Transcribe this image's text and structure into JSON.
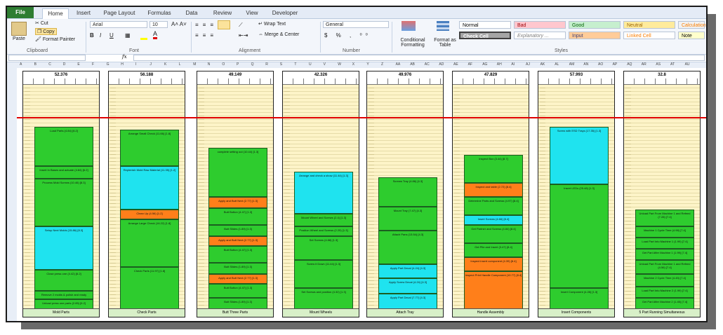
{
  "tabs": [
    "File",
    "Home",
    "Insert",
    "Page Layout",
    "Formulas",
    "Data",
    "Review",
    "View",
    "Developer"
  ],
  "clipboard": {
    "paste": "Paste",
    "cut": "Cut",
    "copy": "Copy",
    "format_painter": "Format Painter",
    "label": "Clipboard"
  },
  "font": {
    "name": "Arial",
    "size": "10",
    "label": "Font"
  },
  "alignment": {
    "wrap": "Wrap Text",
    "merge": "Merge & Center",
    "label": "Alignment"
  },
  "number": {
    "format": "General",
    "label": "Number"
  },
  "styles_group": {
    "cond": "Conditional Formatting",
    "table": "Format as Table",
    "label": "Styles"
  },
  "styles": [
    {
      "name": "Normal",
      "bg": "#ffffff",
      "fg": "#000000"
    },
    {
      "name": "Bad",
      "bg": "#ffc7ce",
      "fg": "#9c0006"
    },
    {
      "name": "Good",
      "bg": "#c6efce",
      "fg": "#006100"
    },
    {
      "name": "Neutral",
      "bg": "#ffeb9c",
      "fg": "#9c6500"
    },
    {
      "name": "Calculation",
      "bg": "#f2f2f2",
      "fg": "#fa7d00"
    },
    {
      "name": "Check Cell",
      "bg": "#a5a5a5",
      "fg": "#ffffff"
    },
    {
      "name": "Explanatory ...",
      "bg": "#ffffff",
      "fg": "#7f7f7f"
    },
    {
      "name": "Input",
      "bg": "#ffcc99",
      "fg": "#3f3f76"
    },
    {
      "name": "Linked Cell",
      "bg": "#ffffff",
      "fg": "#fa7d00"
    },
    {
      "name": "Note",
      "bg": "#ffffcc",
      "fg": "#000000"
    }
  ],
  "fx": "fx",
  "panels": [
    {
      "total": "52.376",
      "footer": "Mold Parts",
      "blocks": [
        {
          "t": "Load Parts (4.84) [6.2]",
          "c": "g",
          "h": 56
        },
        {
          "t": "Insert In Bases and actuate (4.84) [6.2]",
          "c": "g",
          "h": 18
        },
        {
          "t": "Process Mold Screws (10.46) [8.3]",
          "c": "g",
          "h": 68
        },
        {
          "t": "Setup Next Molds (15.86) [8.3]",
          "c": "c",
          "h": 62
        },
        {
          "t": "Close press one (4.42) [6.2]",
          "c": "g",
          "h": 30
        },
        {
          "t": "Remove 2 molds & polish and ready",
          "c": "g",
          "h": 12
        },
        {
          "t": "Unload press one parts (2.85) [6.2]",
          "c": "g",
          "h": 14
        }
      ]
    },
    {
      "total": "56.188",
      "footer": "Check Parts",
      "blocks": [
        {
          "t": "Arrange Small Check (11.66) [1.8]",
          "c": "g",
          "h": 52
        },
        {
          "t": "Replenish Mold Raw Material (11.35) [1.2]",
          "c": "c",
          "h": 62
        },
        {
          "t": "Clean Up (4.56) [1.2]",
          "c": "o",
          "h": 14
        },
        {
          "t": "Arrange Large Check (16.22) [1.8]",
          "c": "g",
          "h": 68
        },
        {
          "t": "Check Parts (11.97) [1.8]",
          "c": "g",
          "h": 60
        }
      ]
    },
    {
      "total": "49.149",
      "footer": "Butt Three Parts",
      "blocks": [
        {
          "t": "complete setting out (10.44) [1.3]",
          "c": "g",
          "h": 70
        },
        {
          "t": "Apply and Butt Next (2.77) [1.3]",
          "c": "o",
          "h": 16
        },
        {
          "t": "Butt Button (4.47) [1.3]",
          "c": "g",
          "h": 24
        },
        {
          "t": "Butt Slides (1.89) [1.3]",
          "c": "g",
          "h": 16
        },
        {
          "t": "Apply and Butt Next (2.77) [1.3]",
          "c": "o",
          "h": 14
        },
        {
          "t": "Butt Button (4.47) [1.3]",
          "c": "g",
          "h": 24
        },
        {
          "t": "Butt Slides (1.89) [1.3]",
          "c": "g",
          "h": 16
        },
        {
          "t": "Apply and Butt Next (2.77) [1.3]",
          "c": "o",
          "h": 14
        },
        {
          "t": "Butt Button (4.47) [1.3]",
          "c": "g",
          "h": 20
        },
        {
          "t": "Butt Slides (1.89) [1.3]",
          "c": "g",
          "h": 16
        }
      ]
    },
    {
      "total": "42.326",
      "footer": "Mount Wheels",
      "blocks": [
        {
          "t": "Arrange and check a show (11.44) [1.3]",
          "c": "c",
          "h": 60
        },
        {
          "t": "Mount Wheel and Screws (2.4) [1.3]",
          "c": "g",
          "h": 18
        },
        {
          "t": "Position Wheel and Screws (2.25) [1.3]",
          "c": "g",
          "h": 14
        },
        {
          "t": "Set Screws (4.88) [1.3]",
          "c": "g",
          "h": 34
        },
        {
          "t": "Screw it Down (11.44) [1.3]",
          "c": "g",
          "h": 40
        },
        {
          "t": "Set Screws and position (4.32) [1.3]",
          "c": "g",
          "h": 30
        }
      ]
    },
    {
      "total": "49.976",
      "footer": "Attach Tray",
      "blocks": [
        {
          "t": "Screws Tray (4.86) [4.3]",
          "c": "g",
          "h": 42
        },
        {
          "t": "Mount Tray (7.47) [4.3]",
          "c": "g",
          "h": 34
        },
        {
          "t": "Attach Pans (13.54) [4.3]",
          "c": "g",
          "h": 48
        },
        {
          "t": "Apply Part Decal (4.24) [4.3]",
          "c": "c",
          "h": 20
        },
        {
          "t": "Apply Screw Decal (4.24) [4.3]",
          "c": "c",
          "h": 22
        },
        {
          "t": "Apply Part Decal (7.77) [4.3]",
          "c": "c",
          "h": 22
        }
      ]
    },
    {
      "total": "47.829",
      "footer": "Handle Assembly",
      "blocks": [
        {
          "t": "Inspect Box (3.44) [8.7]",
          "c": "g",
          "h": 40
        },
        {
          "t": "Inspect and table (2.72) [8.4]",
          "c": "o",
          "h": 20
        },
        {
          "t": "Determine Parts and Screws (4.97) [8.4]",
          "c": "g",
          "h": 26
        },
        {
          "t": "Insert Screws (4.66) [8.4]",
          "c": "c",
          "h": 14
        },
        {
          "t": "Get Partner and Screws (4.84) [8.4]",
          "c": "g",
          "h": 26
        },
        {
          "t": "Get Pile and Insert (3.47) [8.4]",
          "c": "g",
          "h": 20
        },
        {
          "t": "Inspect insert component (4.39) [8.4]",
          "c": "o",
          "h": 20
        },
        {
          "t": "Inspect Print Handle Component (10.77) [8.4]",
          "c": "o",
          "h": 54
        }
      ]
    },
    {
      "total": "57.993",
      "footer": "Insert Components",
      "blocks": [
        {
          "t": "Screw with ESD Trays (17.35) [1.3]",
          "c": "c",
          "h": 82
        },
        {
          "t": "Insert LEDs (25.48) [1.3]",
          "c": "g",
          "h": 148
        },
        {
          "t": "Insert Component (4.28) [1.3]",
          "c": "g",
          "h": 30
        }
      ]
    },
    {
      "total": "32.8",
      "footer": "5 Part Running Simultaneous",
      "blocks": [
        {
          "t": "Unload Part From Machine 1 and Refeed (7.28) [7.4]",
          "c": "g",
          "h": 24
        },
        {
          "t": "Machine 1 Cycle Time (4.98) [7.4]",
          "c": "g",
          "h": 16
        },
        {
          "t": "Load Part Into Machine 1 (1.99) [7.4]",
          "c": "g",
          "h": 16
        },
        {
          "t": "Get Part After Machine 1 (1.99) [7.4]",
          "c": "g",
          "h": 16
        },
        {
          "t": "Unload Part From Machine 1 and Refeed (4.56) [7.4]",
          "c": "g",
          "h": 20
        },
        {
          "t": "Machine 2 Cycle Time (4.45) [7.4]",
          "c": "g",
          "h": 18
        },
        {
          "t": "Load Part Into Machine 2 (1.99) [7.4]",
          "c": "g",
          "h": 16
        },
        {
          "t": "Get Part After Machine 2 (1.45) [7.4]",
          "c": "g",
          "h": 16
        }
      ]
    }
  ]
}
